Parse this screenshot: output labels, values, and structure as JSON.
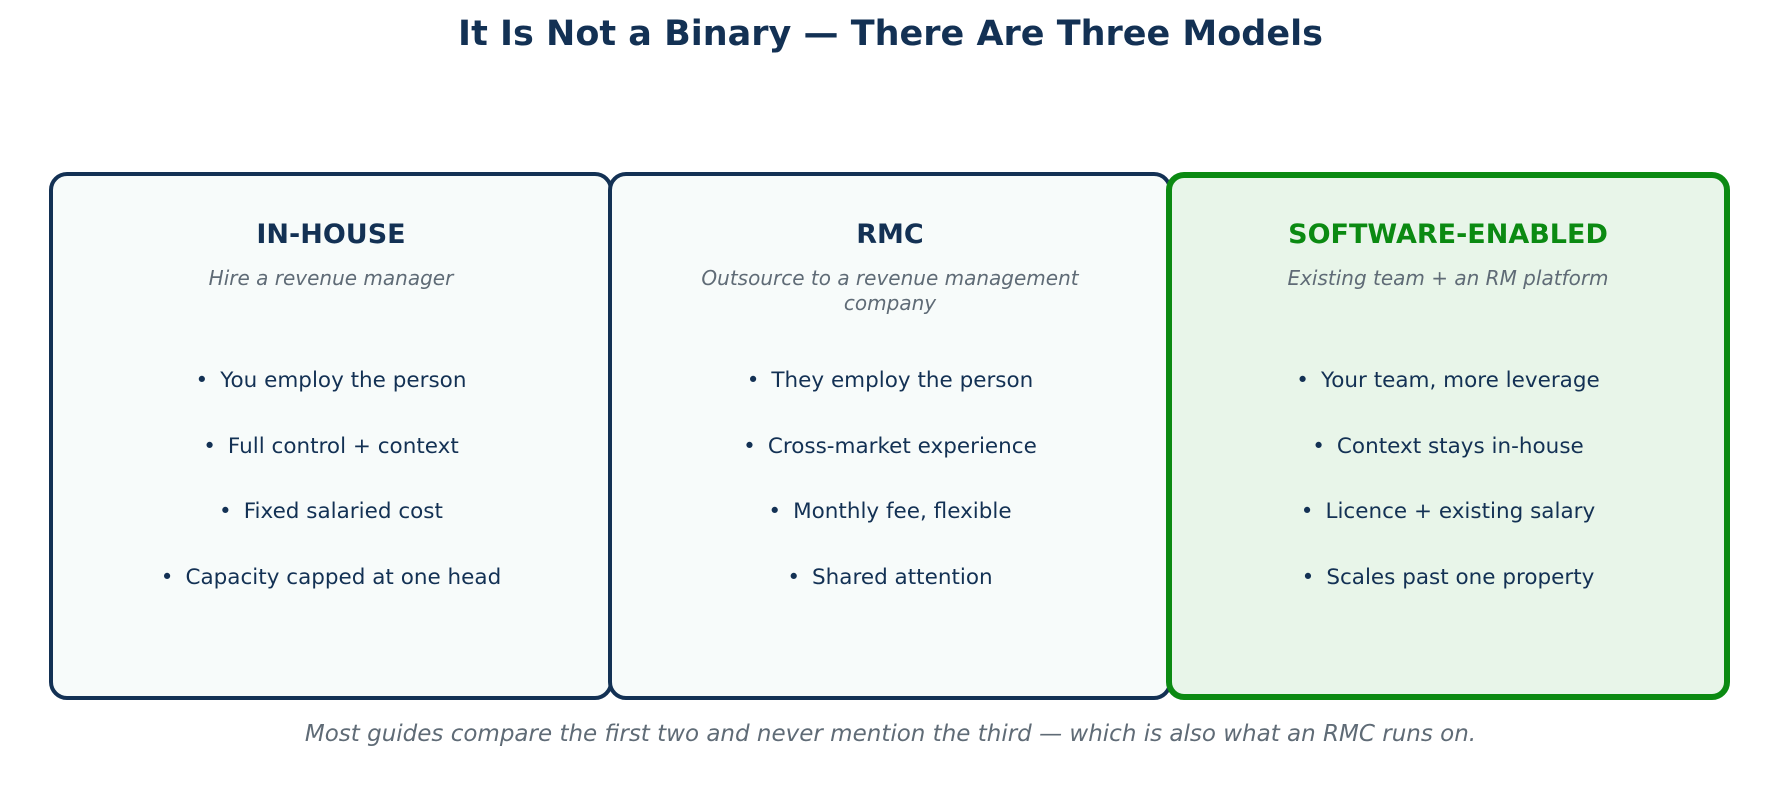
{
  "title": "It Is Not a Binary — There Are Three Models",
  "colors": {
    "navy": "#133154",
    "green": "#0b8a12",
    "muted": "#5f6b76",
    "card_bg": "#f7fbfa",
    "highlight_bg": "#e8f5e9"
  },
  "cards": [
    {
      "title": "IN-HOUSE",
      "subtitle": "Hire a revenue manager",
      "bullets": [
        "You employ the person",
        "Full control + context",
        "Fixed salaried cost",
        "Capacity capped at one head"
      ]
    },
    {
      "title": "RMC",
      "subtitle": "Outsource to a revenue management company",
      "bullets": [
        "They employ the person",
        "Cross-market experience",
        "Monthly fee, flexible",
        "Shared attention"
      ]
    },
    {
      "title": "SOFTWARE-ENABLED",
      "subtitle": "Existing team + an RM platform",
      "bullets": [
        "Your team, more leverage",
        "Context stays in-house",
        "Licence + existing salary",
        "Scales past one property"
      ]
    }
  ],
  "bullet_glyph": "•",
  "footer": "Most guides compare the first two and never mention the third — which is also what an RMC runs on."
}
